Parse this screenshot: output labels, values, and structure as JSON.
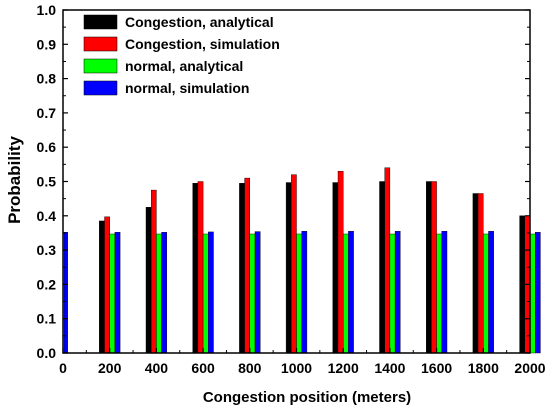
{
  "chart_data": {
    "type": "bar",
    "xlabel": "Congestion position (meters)",
    "ylabel": "Probability",
    "xlim": [
      0,
      2000
    ],
    "ylim": [
      0,
      1.0
    ],
    "x_ticks": [
      0,
      200,
      400,
      600,
      800,
      1000,
      1200,
      1400,
      1600,
      1800,
      2000
    ],
    "y_ticks": [
      "0.0",
      "0.1",
      "0.2",
      "0.3",
      "0.4",
      "0.5",
      "0.6",
      "0.7",
      "0.8",
      "0.9",
      "1.0"
    ],
    "grid": false,
    "legend_position": "top-left",
    "categories": [
      200,
      400,
      600,
      800,
      1000,
      1200,
      1400,
      1600,
      1800,
      2000
    ],
    "series": [
      {
        "name": "Congestion, analytical",
        "color": "#000000",
        "values": [
          0.385,
          0.425,
          0.495,
          0.495,
          0.497,
          0.497,
          0.5,
          0.5,
          0.465,
          0.4
        ]
      },
      {
        "name": "Congestion, simulation",
        "color": "#ff0000",
        "values": [
          0.397,
          0.475,
          0.5,
          0.51,
          0.52,
          0.53,
          0.54,
          0.5,
          0.465,
          0.4
        ]
      },
      {
        "name": "normal, analytical",
        "color": "#00ff00",
        "values": [
          0.347,
          0.347,
          0.347,
          0.347,
          0.347,
          0.347,
          0.347,
          0.347,
          0.347,
          0.347
        ]
      },
      {
        "name": "normal, simulation",
        "color": "#0000ff",
        "values": [
          0.352,
          0.352,
          0.353,
          0.354,
          0.355,
          0.355,
          0.355,
          0.355,
          0.355,
          0.352
        ]
      }
    ],
    "extra_bars": [
      {
        "x": 0,
        "series": "normal, simulation",
        "value": 0.352
      }
    ]
  }
}
